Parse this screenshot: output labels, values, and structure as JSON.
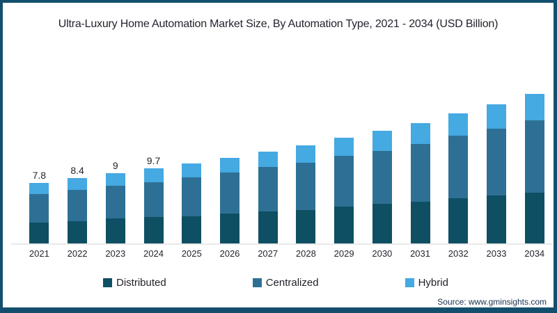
{
  "title": "Ultra-Luxury Home Automation Market Size, By Automation Type, 2021 - 2034 (USD Billion)",
  "source": "Source: www.gminsights.com",
  "colors": {
    "distributed": "#0e4f63",
    "centralized": "#2e7095",
    "hybrid": "#45a9e2",
    "frame_border": "#134f6d",
    "baseline": "#e9e9e9",
    "text": "#23232e"
  },
  "chart_data": {
    "type": "bar",
    "stacked": true,
    "grid": false,
    "y_axis_visible": false,
    "legend_position": "bottom",
    "title": "Ultra-Luxury Home Automation Market Size, By Automation Type, 2021 - 2034 (USD Billion)",
    "xlabel": "",
    "ylabel": "USD Billion",
    "categories": [
      "2021",
      "2022",
      "2023",
      "2024",
      "2025",
      "2026",
      "2027",
      "2028",
      "2029",
      "2030",
      "2031",
      "2032",
      "2033",
      "2034"
    ],
    "series": [
      {
        "name": "Distributed",
        "color": "#0e4f63",
        "values": [
          2.7,
          2.9,
          3.2,
          3.4,
          3.5,
          3.8,
          4.1,
          4.3,
          4.7,
          5.1,
          5.4,
          5.8,
          6.2,
          6.5
        ]
      },
      {
        "name": "Centralized",
        "color": "#2e7095",
        "values": [
          3.7,
          4.0,
          4.2,
          4.5,
          5.0,
          5.3,
          5.7,
          6.1,
          6.5,
          6.8,
          7.4,
          8.0,
          8.6,
          9.3
        ]
      },
      {
        "name": "Hybrid",
        "color": "#45a9e2",
        "values": [
          1.4,
          1.5,
          1.6,
          1.8,
          1.8,
          1.9,
          2.0,
          2.2,
          2.3,
          2.6,
          2.7,
          2.9,
          3.1,
          3.4
        ]
      }
    ],
    "totals": [
      7.8,
      8.4,
      9.0,
      9.7,
      10.3,
      11.0,
      11.8,
      12.6,
      13.5,
      14.5,
      15.5,
      16.7,
      17.9,
      19.2
    ],
    "value_labels": [
      "7.8",
      "8.4",
      "9",
      "9.7",
      "",
      "",
      "",
      "",
      "",
      "",
      "",
      "",
      "",
      ""
    ]
  }
}
